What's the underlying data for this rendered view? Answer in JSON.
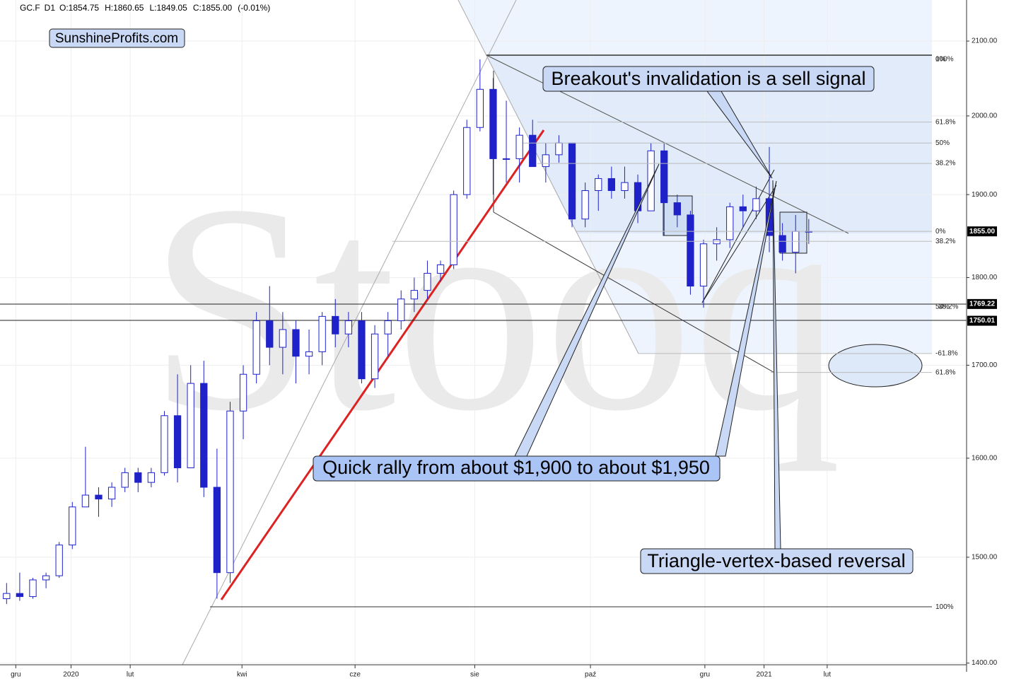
{
  "chart_data": {
    "type": "candlestick",
    "header": [
      "GC.F",
      "D1",
      "O:1854.75",
      "H:1860.65",
      "L:1849.05",
      "C:1855.00",
      "(-0.01%)"
    ],
    "brand": "SunshineProfits.com",
    "watermark": "Stooq",
    "color": "#1e22c8",
    "log_scale": true,
    "grid": true,
    "x": [
      0,
      1,
      2,
      3,
      4,
      5,
      6,
      7,
      8,
      9,
      10,
      11,
      12,
      13,
      14,
      15,
      16,
      17,
      18,
      19,
      20,
      21,
      22,
      23,
      24,
      25,
      26,
      27,
      28,
      29,
      30,
      31,
      32,
      33,
      34,
      35,
      36,
      37,
      38,
      39,
      40,
      41,
      42,
      43,
      44,
      45,
      46,
      47,
      48,
      49,
      50,
      51,
      52,
      53,
      54,
      55,
      56,
      57,
      58,
      59,
      60,
      61
    ],
    "open": [
      1460,
      1465,
      1462,
      1478,
      1482,
      1512,
      1550,
      1562,
      1558,
      1570,
      1585,
      1575,
      1585,
      1645,
      1590,
      1680,
      1570,
      1485,
      1650,
      1690,
      1750,
      1720,
      1740,
      1710,
      1715,
      1755,
      1735,
      1750,
      1685,
      1735,
      1750,
      1775,
      1785,
      1805,
      1815,
      1900,
      1985,
      2035,
      1945,
      1945,
      1975,
      1935,
      1950,
      1965,
      1870,
      1905,
      1920,
      1905,
      1915,
      1880,
      1955,
      1890,
      1875,
      1790,
      1840,
      1845,
      1885,
      1880,
      1895,
      1850,
      1830,
      1855
    ],
    "high": [
      1475,
      1485,
      1480,
      1485,
      1515,
      1555,
      1612,
      1570,
      1575,
      1590,
      1590,
      1590,
      1650,
      1690,
      1700,
      1705,
      1610,
      1660,
      1700,
      1760,
      1790,
      1760,
      1750,
      1740,
      1760,
      1775,
      1760,
      1760,
      1745,
      1760,
      1785,
      1800,
      1820,
      1820,
      1905,
      1995,
      2075,
      2050,
      2020,
      1985,
      1995,
      1965,
      1975,
      1965,
      1915,
      1925,
      1935,
      1935,
      1925,
      1965,
      1965,
      1900,
      1880,
      1845,
      1860,
      1890,
      1900,
      1910,
      1960,
      1865,
      1875,
      1870
    ],
    "low": [
      1455,
      1458,
      1460,
      1470,
      1480,
      1508,
      1550,
      1540,
      1550,
      1565,
      1565,
      1570,
      1582,
      1575,
      1590,
      1560,
      1460,
      1475,
      1620,
      1680,
      1700,
      1690,
      1680,
      1690,
      1700,
      1720,
      1720,
      1680,
      1675,
      1710,
      1740,
      1760,
      1775,
      1795,
      1810,
      1895,
      1980,
      1900,
      1915,
      1915,
      1935,
      1915,
      1940,
      1860,
      1860,
      1880,
      1895,
      1895,
      1865,
      1880,
      1850,
      1860,
      1780,
      1765,
      1820,
      1835,
      1860,
      1870,
      1830,
      1820,
      1805,
      1840
    ],
    "close": [
      1465,
      1462,
      1478,
      1482,
      1512,
      1550,
      1562,
      1558,
      1570,
      1585,
      1575,
      1585,
      1645,
      1590,
      1680,
      1570,
      1485,
      1650,
      1690,
      1750,
      1720,
      1740,
      1710,
      1715,
      1755,
      1735,
      1750,
      1685,
      1735,
      1750,
      1775,
      1785,
      1805,
      1815,
      1900,
      1985,
      2035,
      1945,
      1945,
      1975,
      1935,
      1950,
      1965,
      1870,
      1905,
      1920,
      1905,
      1915,
      1880,
      1955,
      1890,
      1875,
      1790,
      1840,
      1845,
      1885,
      1880,
      1895,
      1850,
      1830,
      1855,
      1855
    ],
    "xlim": [
      -0.5,
      73
    ],
    "xticks": [
      {
        "value": 0.7,
        "label": "gru"
      },
      {
        "value": 4.9,
        "label": "2020"
      },
      {
        "value": 9.4,
        "label": "lut"
      },
      {
        "value": 17.9,
        "label": "kwi"
      },
      {
        "value": 26.5,
        "label": "cze"
      },
      {
        "value": 35.6,
        "label": "sie"
      },
      {
        "value": 44.4,
        "label": "paź"
      },
      {
        "value": 53.1,
        "label": "gru"
      },
      {
        "value": 57.6,
        "label": "2021"
      },
      {
        "value": 62.4,
        "label": "lut"
      }
    ],
    "ylim": [
      1392,
      2157
    ],
    "yticks": [
      {
        "value": 1400,
        "label": "1400.00"
      },
      {
        "value": 1500,
        "label": "1500.00"
      },
      {
        "value": 1600,
        "label": "1600.00"
      },
      {
        "value": 1700,
        "label": "1700.00"
      },
      {
        "value": 1800,
        "label": "1800.00"
      },
      {
        "value": 1900,
        "label": "1900.00"
      },
      {
        "value": 2000,
        "label": "2000.00"
      },
      {
        "value": 2100,
        "label": "2100.00"
      }
    ],
    "price_lines": [
      {
        "value": 1855,
        "label": "1855.00"
      },
      {
        "value": 1769.22,
        "label": "1769.22"
      },
      {
        "value": 1750.01,
        "label": "1750.01"
      }
    ],
    "fib_levels": [
      {
        "price": 2075,
        "text": "0%"
      },
      {
        "price": 2075,
        "text": "100%"
      },
      {
        "price": 1992,
        "text": "61.8%"
      },
      {
        "price": 1965,
        "text": "50%"
      },
      {
        "price": 1939,
        "text": "38.2%"
      },
      {
        "price": 1855,
        "text": "0%"
      },
      {
        "price": 1843,
        "text": "38.2%"
      },
      {
        "price": 1766,
        "text": "50%"
      },
      {
        "price": 1766,
        "text": "38.2%"
      },
      {
        "price": 1713,
        "text": "-61.8%"
      },
      {
        "price": 1692,
        "text": "61.8%"
      },
      {
        "price": 1452,
        "text": "100%"
      }
    ],
    "callouts": [
      "Breakout's invalidation is a sell signal",
      "Quick rally from about $1,900 to about $1,950",
      "Triangle-vertex-based reversal"
    ]
  }
}
